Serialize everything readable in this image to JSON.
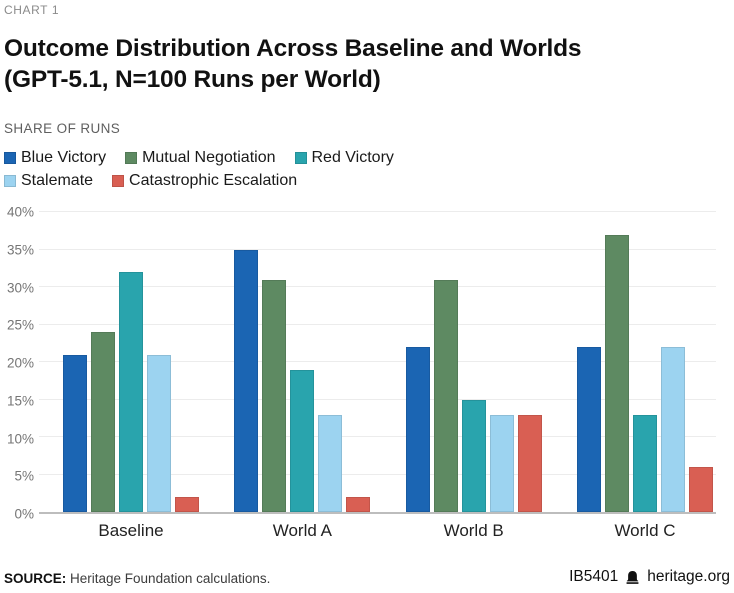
{
  "header": {
    "kicker": "CHART 1",
    "title_line1": "Outcome Distribution Across Baseline and Worlds",
    "title_line2": "(GPT-5.1, N=100 Runs per World)",
    "axis_caption": "SHARE OF RUNS"
  },
  "chart_data": {
    "type": "bar",
    "title": "Outcome Distribution Across Baseline and Worlds (GPT-5.1, N=100 Runs per World)",
    "ylabel": "SHARE OF RUNS",
    "xlabel": "",
    "ylim": [
      0,
      40
    ],
    "ytick_step": 5,
    "ytick_suffix": "%",
    "grid": true,
    "legend_position": "top",
    "legend_rows": [
      [
        0,
        1,
        2
      ],
      [
        3,
        4
      ]
    ],
    "categories": [
      "Baseline",
      "World A",
      "World B",
      "World C"
    ],
    "series": [
      {
        "name": "Blue Victory",
        "color": "#1b65b3",
        "values": [
          21,
          35,
          22,
          22
        ]
      },
      {
        "name": "Mutual Negotiation",
        "color": "#5e8a62",
        "values": [
          24,
          31,
          31,
          37
        ]
      },
      {
        "name": "Red Victory",
        "color": "#29a4ad",
        "values": [
          32,
          19,
          15,
          13
        ]
      },
      {
        "name": "Stalemate",
        "color": "#9cd3f0",
        "values": [
          21,
          13,
          13,
          22
        ]
      },
      {
        "name": "Catastrophic Escalation",
        "color": "#d95f53",
        "values": [
          2,
          2,
          13,
          6
        ]
      }
    ]
  },
  "footer": {
    "source_label": "SOURCE:",
    "source_text": " Heritage Foundation calculations.",
    "report_id": "IB5401",
    "site": "heritage.org",
    "bell_icon": "heritage-bell"
  },
  "colors": {
    "axis_line": "#bdbdbd",
    "gridline": "#ececec",
    "tick_text": "#757575"
  }
}
